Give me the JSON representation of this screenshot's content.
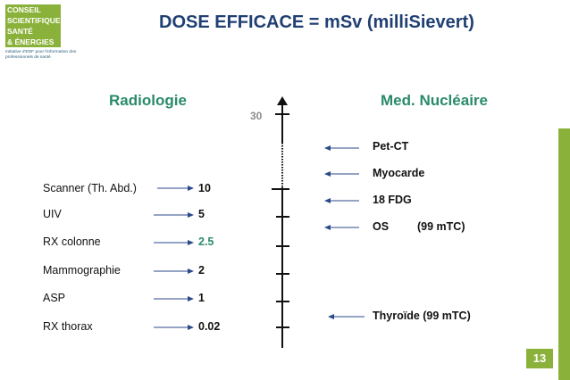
{
  "logo": {
    "lines": [
      "CONSEIL",
      "SCIENTIFIQUE",
      "SANTÉ",
      "& ÉNERGIES"
    ],
    "tagline": "Initiative d'EDF pour l'information des professionnels de santé"
  },
  "title": "DOSE EFFICACE = mSv (milliSievert)",
  "left_heading": "Radiologie",
  "right_heading": "Med. Nucléaire",
  "scale_label": "30",
  "radiologie": [
    {
      "label": "Scanner (Th. Abd.)",
      "value": "10"
    },
    {
      "label": "UIV",
      "value": "5"
    },
    {
      "label": "RX colonne",
      "value": "2.5"
    },
    {
      "label": "Mammographie",
      "value": "2"
    },
    {
      "label": "ASP",
      "value": "1"
    },
    {
      "label": "RX thorax",
      "value": "0.02"
    }
  ],
  "nucleaire": [
    {
      "label": "Pet-CT"
    },
    {
      "label": "Myocarde"
    },
    {
      "label": "18 FDG"
    },
    {
      "label": "OS",
      "note": "(99 mTC)"
    },
    {
      "label": "Thyroïde (99 mTC)"
    }
  ],
  "page_number": "13",
  "colors": {
    "title": "#203f73",
    "heading": "#2a8a6b",
    "accent": "#8ab23a",
    "arrow": "#2b4a8a"
  }
}
